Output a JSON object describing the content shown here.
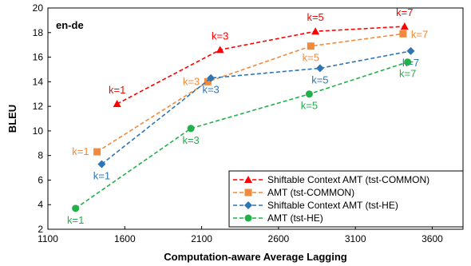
{
  "chart_data": {
    "type": "line",
    "title": "en-de",
    "xlabel": "Computation-aware Average Lagging",
    "ylabel": "BLEU",
    "xlim": [
      1100,
      3800
    ],
    "ylim": [
      2,
      20
    ],
    "xticks": [
      1100,
      1600,
      2100,
      2600,
      3100,
      3600
    ],
    "yticks": [
      2,
      4,
      6,
      8,
      10,
      12,
      14,
      16,
      18,
      20
    ],
    "grid": false,
    "legend_position": "bottom-right",
    "series": [
      {
        "name": "Shiftable Context AMT (tst-COMMON)",
        "color": "#ff0000",
        "marker": "triangle",
        "x": [
          1550,
          2220,
          2840,
          3420
        ],
        "y": [
          12.2,
          16.6,
          18.1,
          18.5
        ],
        "labels": [
          "k=1",
          "k=3",
          "k=5",
          "k=7"
        ],
        "label_pos": [
          "above",
          "above",
          "above",
          "above"
        ]
      },
      {
        "name": "AMT (tst-COMMON)",
        "color": "#f08a3c",
        "marker": "square",
        "x": [
          1420,
          2140,
          2810,
          3410
        ],
        "y": [
          8.3,
          14.0,
          16.9,
          17.9
        ],
        "labels": [
          "k=1",
          "k=3",
          "k=5",
          "k=7"
        ],
        "label_pos": [
          "left",
          "left",
          "below",
          "right"
        ]
      },
      {
        "name": "Shiftable Context AMT (tst-HE)",
        "color": "#2e75b6",
        "marker": "diamond",
        "x": [
          1450,
          2160,
          2870,
          3460
        ],
        "y": [
          7.3,
          14.3,
          15.1,
          16.5
        ],
        "labels": [
          "k=1",
          "k=3",
          "k=5",
          "k=7"
        ],
        "label_pos": [
          "below",
          "below",
          "below",
          "below"
        ]
      },
      {
        "name": "AMT (tst-HE)",
        "color": "#22b04b",
        "marker": "circle",
        "x": [
          1280,
          2030,
          2800,
          3440
        ],
        "y": [
          3.7,
          10.2,
          13.0,
          15.6
        ],
        "labels": [
          "k=1",
          "k=3",
          "k=5",
          "k=7"
        ],
        "label_pos": [
          "below",
          "below",
          "below",
          "below"
        ]
      }
    ]
  }
}
